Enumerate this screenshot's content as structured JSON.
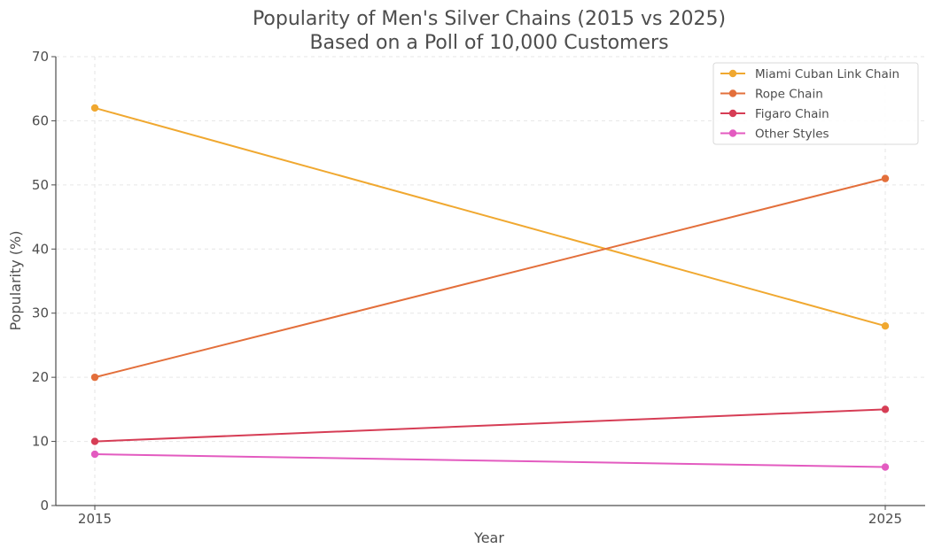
{
  "chart_data": {
    "type": "line",
    "title": "Popularity of Men's Silver Chains (2015 vs 2025)",
    "subtitle": "Based on a Poll of 10,000 Customers",
    "xlabel": "Year",
    "ylabel": "Popularity (%)",
    "x": [
      "2015",
      "2025"
    ],
    "ylim": [
      0,
      70
    ],
    "yticks": [
      0,
      10,
      20,
      30,
      40,
      50,
      60,
      70
    ],
    "grid": true,
    "legend_position": "top-right",
    "series": [
      {
        "name": "Miami Cuban Link Chain",
        "values": [
          62,
          28
        ],
        "color": "#f0a830"
      },
      {
        "name": "Rope Chain",
        "values": [
          20,
          51
        ],
        "color": "#e36f3b"
      },
      {
        "name": "Figaro Chain",
        "values": [
          10,
          15
        ],
        "color": "#d63d55"
      },
      {
        "name": "Other Styles",
        "values": [
          8,
          6
        ],
        "color": "#e35bc0"
      }
    ]
  }
}
